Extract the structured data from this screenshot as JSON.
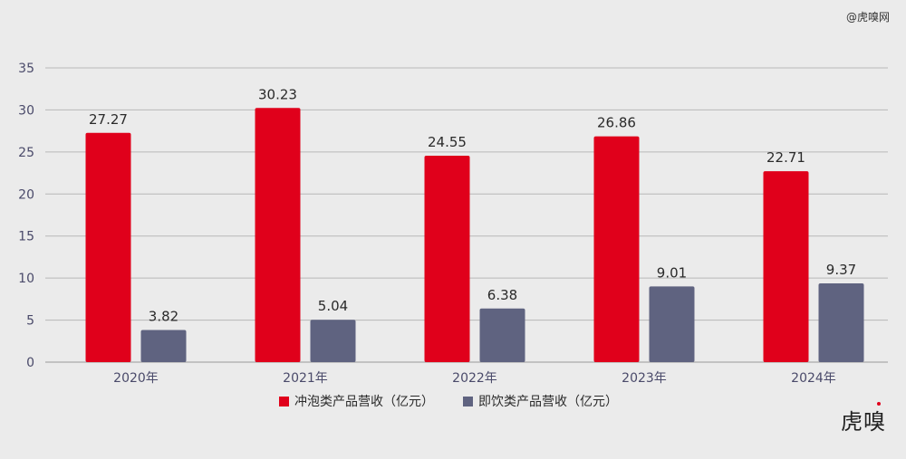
{
  "watermark": "@虎嗅网",
  "logo": "虎嗅",
  "chart_data": {
    "type": "bar",
    "categories": [
      "2020年",
      "2021年",
      "2022年",
      "2023年",
      "2024年"
    ],
    "series": [
      {
        "name": "冲泡类产品营收（亿元）",
        "color": "#e0001b",
        "values": [
          27.27,
          30.23,
          24.55,
          26.86,
          22.71
        ]
      },
      {
        "name": "即饮类产品营收（亿元）",
        "color": "#5f6380",
        "values": [
          3.82,
          5.04,
          6.38,
          9.01,
          9.37
        ]
      }
    ],
    "value_labels": [
      [
        "27.27",
        "30.23",
        "24.55",
        "26.86",
        "22.71"
      ],
      [
        "3.82",
        "5.04",
        "6.38",
        "9.01",
        "9.37"
      ]
    ],
    "ylim": [
      0,
      35
    ],
    "yticks": [
      "0",
      "5",
      "10",
      "15",
      "20",
      "25",
      "30",
      "35"
    ],
    "grid": true,
    "legend_position": "bottom",
    "title": "",
    "xlabel": "",
    "ylabel": ""
  }
}
